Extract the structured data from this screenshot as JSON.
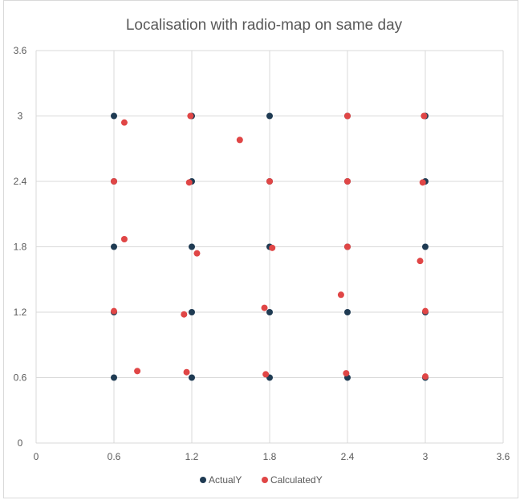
{
  "chart_data": {
    "type": "scatter",
    "title": "Localisation with radio-map on same day",
    "xlabel": "",
    "ylabel": "",
    "xlim": [
      0,
      3.6
    ],
    "ylim": [
      0,
      3.6
    ],
    "xticks": [
      "0",
      "0.6",
      "1.2",
      "1.8",
      "2.4",
      "3",
      "3.6"
    ],
    "yticks": [
      "0",
      "0.6",
      "1.2",
      "1.8",
      "2.4",
      "3",
      "3.6"
    ],
    "grid": true,
    "legend_position": "bottom",
    "series": [
      {
        "name": "ActualY",
        "color": "#1f3b53",
        "points": [
          [
            0.6,
            0.6
          ],
          [
            0.6,
            1.2
          ],
          [
            0.6,
            1.8
          ],
          [
            0.6,
            2.4
          ],
          [
            0.6,
            3.0
          ],
          [
            1.2,
            0.6
          ],
          [
            1.2,
            1.2
          ],
          [
            1.2,
            1.8
          ],
          [
            1.2,
            2.4
          ],
          [
            1.2,
            3.0
          ],
          [
            1.8,
            0.6
          ],
          [
            1.8,
            1.2
          ],
          [
            1.8,
            1.8
          ],
          [
            1.8,
            2.4
          ],
          [
            1.8,
            3.0
          ],
          [
            2.4,
            0.6
          ],
          [
            2.4,
            1.2
          ],
          [
            2.4,
            1.8
          ],
          [
            2.4,
            2.4
          ],
          [
            2.4,
            3.0
          ],
          [
            3.0,
            0.6
          ],
          [
            3.0,
            1.2
          ],
          [
            3.0,
            1.8
          ],
          [
            3.0,
            2.4
          ],
          [
            3.0,
            3.0
          ]
        ]
      },
      {
        "name": "CalculatedY",
        "color": "#e04646",
        "points": [
          [
            0.6,
            1.21
          ],
          [
            0.6,
            2.4
          ],
          [
            0.68,
            2.94
          ],
          [
            0.68,
            1.87
          ],
          [
            0.78,
            0.66
          ],
          [
            1.14,
            1.18
          ],
          [
            1.16,
            0.65
          ],
          [
            1.18,
            2.39
          ],
          [
            1.19,
            3.0
          ],
          [
            1.24,
            1.74
          ],
          [
            1.57,
            2.78
          ],
          [
            1.76,
            1.24
          ],
          [
            1.77,
            0.63
          ],
          [
            1.8,
            2.4
          ],
          [
            1.82,
            1.79
          ],
          [
            2.35,
            1.36
          ],
          [
            2.39,
            0.64
          ],
          [
            2.4,
            1.8
          ],
          [
            2.4,
            2.4
          ],
          [
            2.4,
            3.0
          ],
          [
            2.96,
            1.67
          ],
          [
            2.98,
            2.39
          ],
          [
            2.99,
            3.0
          ],
          [
            3.0,
            1.21
          ],
          [
            3.0,
            0.61
          ]
        ]
      }
    ]
  }
}
